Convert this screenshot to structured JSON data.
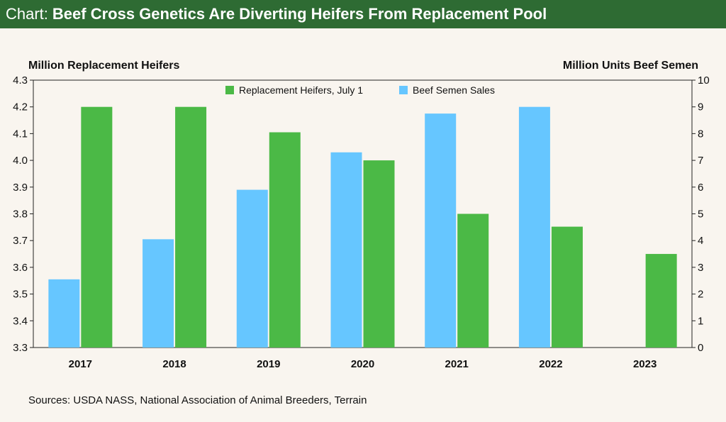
{
  "header": {
    "prefix": "Chart:",
    "title": "Beef Cross Genetics Are Diverting Heifers From Replacement Pool"
  },
  "source": "Sources: USDA NASS, National Association of Animal Breeders, Terrain",
  "colors": {
    "title_bg": "#2e6b33",
    "heifers": "#4bb946",
    "semen": "#66c6ff",
    "background": "#f9f5ef"
  },
  "chart_data": {
    "type": "bar",
    "title": "Beef Cross Genetics Are Diverting Heifers From Replacement Pool",
    "categories": [
      "2017",
      "2018",
      "2019",
      "2020",
      "2021",
      "2022",
      "2023"
    ],
    "left_axis": {
      "label": "Million Replacement Heifers",
      "ylim": [
        3.3,
        4.3
      ],
      "ticks": [
        "3.3",
        "3.4",
        "3.5",
        "3.6",
        "3.7",
        "3.8",
        "3.9",
        "4.0",
        "4.1",
        "4.2",
        "4.3"
      ]
    },
    "right_axis": {
      "label": "Million Units Beef Semen",
      "ylim": [
        0,
        10
      ],
      "ticks": [
        "0",
        "1",
        "2",
        "3",
        "4",
        "5",
        "6",
        "7",
        "8",
        "9",
        "10"
      ]
    },
    "series": [
      {
        "name": "Beef Semen Sales",
        "axis": "right",
        "color": "#66c6ff",
        "values": [
          2.55,
          4.05,
          5.9,
          7.3,
          8.75,
          9.0,
          null
        ]
      },
      {
        "name": "Replacement Heifers, July 1",
        "axis": "left",
        "color": "#4bb946",
        "values": [
          4.2,
          4.2,
          4.105,
          4.0,
          3.8,
          3.752,
          3.65
        ]
      }
    ],
    "legend": [
      "Replacement Heifers, July 1",
      "Beef Semen Sales"
    ],
    "legend_position": "top-center",
    "grid": false
  }
}
